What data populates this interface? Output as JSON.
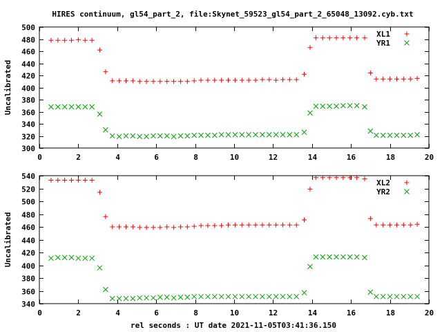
{
  "title": "HIRES continuum, gl54_part_2, file:Skynet_59523_gl54_part_2_65048_13092.cyb.txt",
  "xlabel": "rel seconds : UT date 2021-11-05T03:41:36.150",
  "colors": {
    "red": "#ff0000",
    "green": "#00a000",
    "axis": "#000000"
  },
  "chart_data": [
    {
      "type": "scatter",
      "ylabel": "Uncalibrated",
      "xlim": [
        0,
        20
      ],
      "ylim": [
        300,
        500
      ],
      "xticks": [
        0,
        2,
        4,
        6,
        8,
        10,
        12,
        14,
        16,
        18,
        20
      ],
      "yticks": [
        300,
        320,
        340,
        360,
        380,
        400,
        420,
        440,
        460,
        480,
        500
      ],
      "legend": "top-right",
      "series": [
        {
          "name": "XL1",
          "marker": "plus",
          "color": "#ff0000",
          "x": [
            0.6,
            0.95,
            1.3,
            1.65,
            2.0,
            2.35,
            2.7,
            3.1,
            3.4,
            3.75,
            4.1,
            4.45,
            4.8,
            5.15,
            5.5,
            5.85,
            6.2,
            6.55,
            6.9,
            7.25,
            7.6,
            7.95,
            8.3,
            8.65,
            9.0,
            9.35,
            9.7,
            10.05,
            10.4,
            10.75,
            11.1,
            11.45,
            11.8,
            12.15,
            12.5,
            12.85,
            13.2,
            13.6,
            13.9,
            14.2,
            14.55,
            14.9,
            15.25,
            15.6,
            15.95,
            16.3,
            16.7,
            17.0,
            17.3,
            17.65,
            18.0,
            18.35,
            18.7,
            19.05,
            19.4
          ],
          "y": [
            478,
            478,
            478,
            478,
            479,
            478,
            478,
            462,
            426,
            411,
            411,
            411,
            411,
            410,
            410,
            410,
            410,
            410,
            410,
            410,
            410,
            411,
            412,
            412,
            412,
            412,
            412,
            412,
            412,
            412,
            412,
            413,
            413,
            412,
            413,
            413,
            413,
            422,
            466,
            482,
            482,
            482,
            482,
            482,
            482,
            482,
            482,
            424,
            414,
            414,
            414,
            414,
            414,
            414,
            415
          ]
        },
        {
          "name": "YR1",
          "marker": "cross",
          "color": "#00a000",
          "x": [
            0.6,
            0.95,
            1.3,
            1.65,
            2.0,
            2.35,
            2.7,
            3.1,
            3.4,
            3.75,
            4.1,
            4.45,
            4.8,
            5.15,
            5.5,
            5.85,
            6.2,
            6.55,
            6.9,
            7.25,
            7.6,
            7.95,
            8.3,
            8.65,
            9.0,
            9.35,
            9.7,
            10.05,
            10.4,
            10.75,
            11.1,
            11.45,
            11.8,
            12.15,
            12.5,
            12.85,
            13.2,
            13.6,
            13.9,
            14.2,
            14.55,
            14.9,
            15.25,
            15.6,
            15.95,
            16.3,
            16.7,
            17.0,
            17.3,
            17.65,
            18.0,
            18.35,
            18.7,
            19.05,
            19.4
          ],
          "y": [
            368,
            368,
            368,
            368,
            368,
            368,
            368,
            356,
            330,
            320,
            319,
            320,
            320,
            319,
            319,
            320,
            320,
            320,
            319,
            320,
            320,
            321,
            321,
            321,
            321,
            322,
            322,
            322,
            322,
            322,
            322,
            322,
            322,
            322,
            322,
            322,
            322,
            326,
            358,
            369,
            369,
            369,
            369,
            370,
            370,
            370,
            368,
            328,
            321,
            321,
            321,
            321,
            321,
            321,
            322
          ]
        }
      ]
    },
    {
      "type": "scatter",
      "ylabel": "Uncalibrated",
      "xlim": [
        0,
        20
      ],
      "ylim": [
        340,
        540
      ],
      "xticks": [
        0,
        2,
        4,
        6,
        8,
        10,
        12,
        14,
        16,
        18,
        20
      ],
      "yticks": [
        340,
        360,
        380,
        400,
        420,
        440,
        460,
        480,
        500,
        520,
        540
      ],
      "legend": "top-right",
      "series": [
        {
          "name": "XL2",
          "marker": "plus",
          "color": "#ff0000",
          "x": [
            0.6,
            0.95,
            1.3,
            1.65,
            2.0,
            2.35,
            2.7,
            3.1,
            3.4,
            3.75,
            4.1,
            4.45,
            4.8,
            5.15,
            5.5,
            5.85,
            6.2,
            6.55,
            6.9,
            7.25,
            7.6,
            7.95,
            8.3,
            8.65,
            9.0,
            9.35,
            9.7,
            10.05,
            10.4,
            10.75,
            11.1,
            11.45,
            11.8,
            12.15,
            12.5,
            12.85,
            13.2,
            13.6,
            13.9,
            14.2,
            14.55,
            14.9,
            15.25,
            15.6,
            15.95,
            16.3,
            16.7,
            17.0,
            17.3,
            17.65,
            18.0,
            18.35,
            18.7,
            19.05,
            19.4
          ],
          "y": [
            533,
            533,
            533,
            533,
            533,
            533,
            533,
            514,
            476,
            460,
            460,
            460,
            460,
            459,
            459,
            459,
            459,
            460,
            459,
            460,
            460,
            461,
            462,
            462,
            462,
            462,
            463,
            463,
            463,
            463,
            463,
            463,
            463,
            463,
            463,
            463,
            463,
            471,
            519,
            537,
            537,
            537,
            537,
            537,
            537,
            537,
            535,
            473,
            463,
            463,
            463,
            463,
            463,
            463,
            464
          ]
        },
        {
          "name": "YR2",
          "marker": "cross",
          "color": "#00a000",
          "x": [
            0.6,
            0.95,
            1.3,
            1.65,
            2.0,
            2.35,
            2.7,
            3.1,
            3.4,
            3.75,
            4.1,
            4.45,
            4.8,
            5.15,
            5.5,
            5.85,
            6.2,
            6.55,
            6.9,
            7.25,
            7.6,
            7.95,
            8.3,
            8.65,
            9.0,
            9.35,
            9.7,
            10.05,
            10.4,
            10.75,
            11.1,
            11.45,
            11.8,
            12.15,
            12.5,
            12.85,
            13.2,
            13.6,
            13.9,
            14.2,
            14.55,
            14.9,
            15.25,
            15.6,
            15.95,
            16.3,
            16.7,
            17.0,
            17.3,
            17.65,
            18.0,
            18.35,
            18.7,
            19.05,
            19.4
          ],
          "y": [
            411,
            412,
            412,
            412,
            411,
            411,
            411,
            396,
            362,
            348,
            348,
            348,
            348,
            349,
            349,
            349,
            350,
            350,
            349,
            350,
            350,
            351,
            351,
            351,
            351,
            351,
            351,
            351,
            351,
            351,
            351,
            351,
            351,
            351,
            351,
            351,
            351,
            357,
            398,
            413,
            413,
            413,
            413,
            413,
            413,
            413,
            412,
            358,
            351,
            351,
            351,
            351,
            351,
            351,
            351
          ]
        }
      ]
    }
  ]
}
